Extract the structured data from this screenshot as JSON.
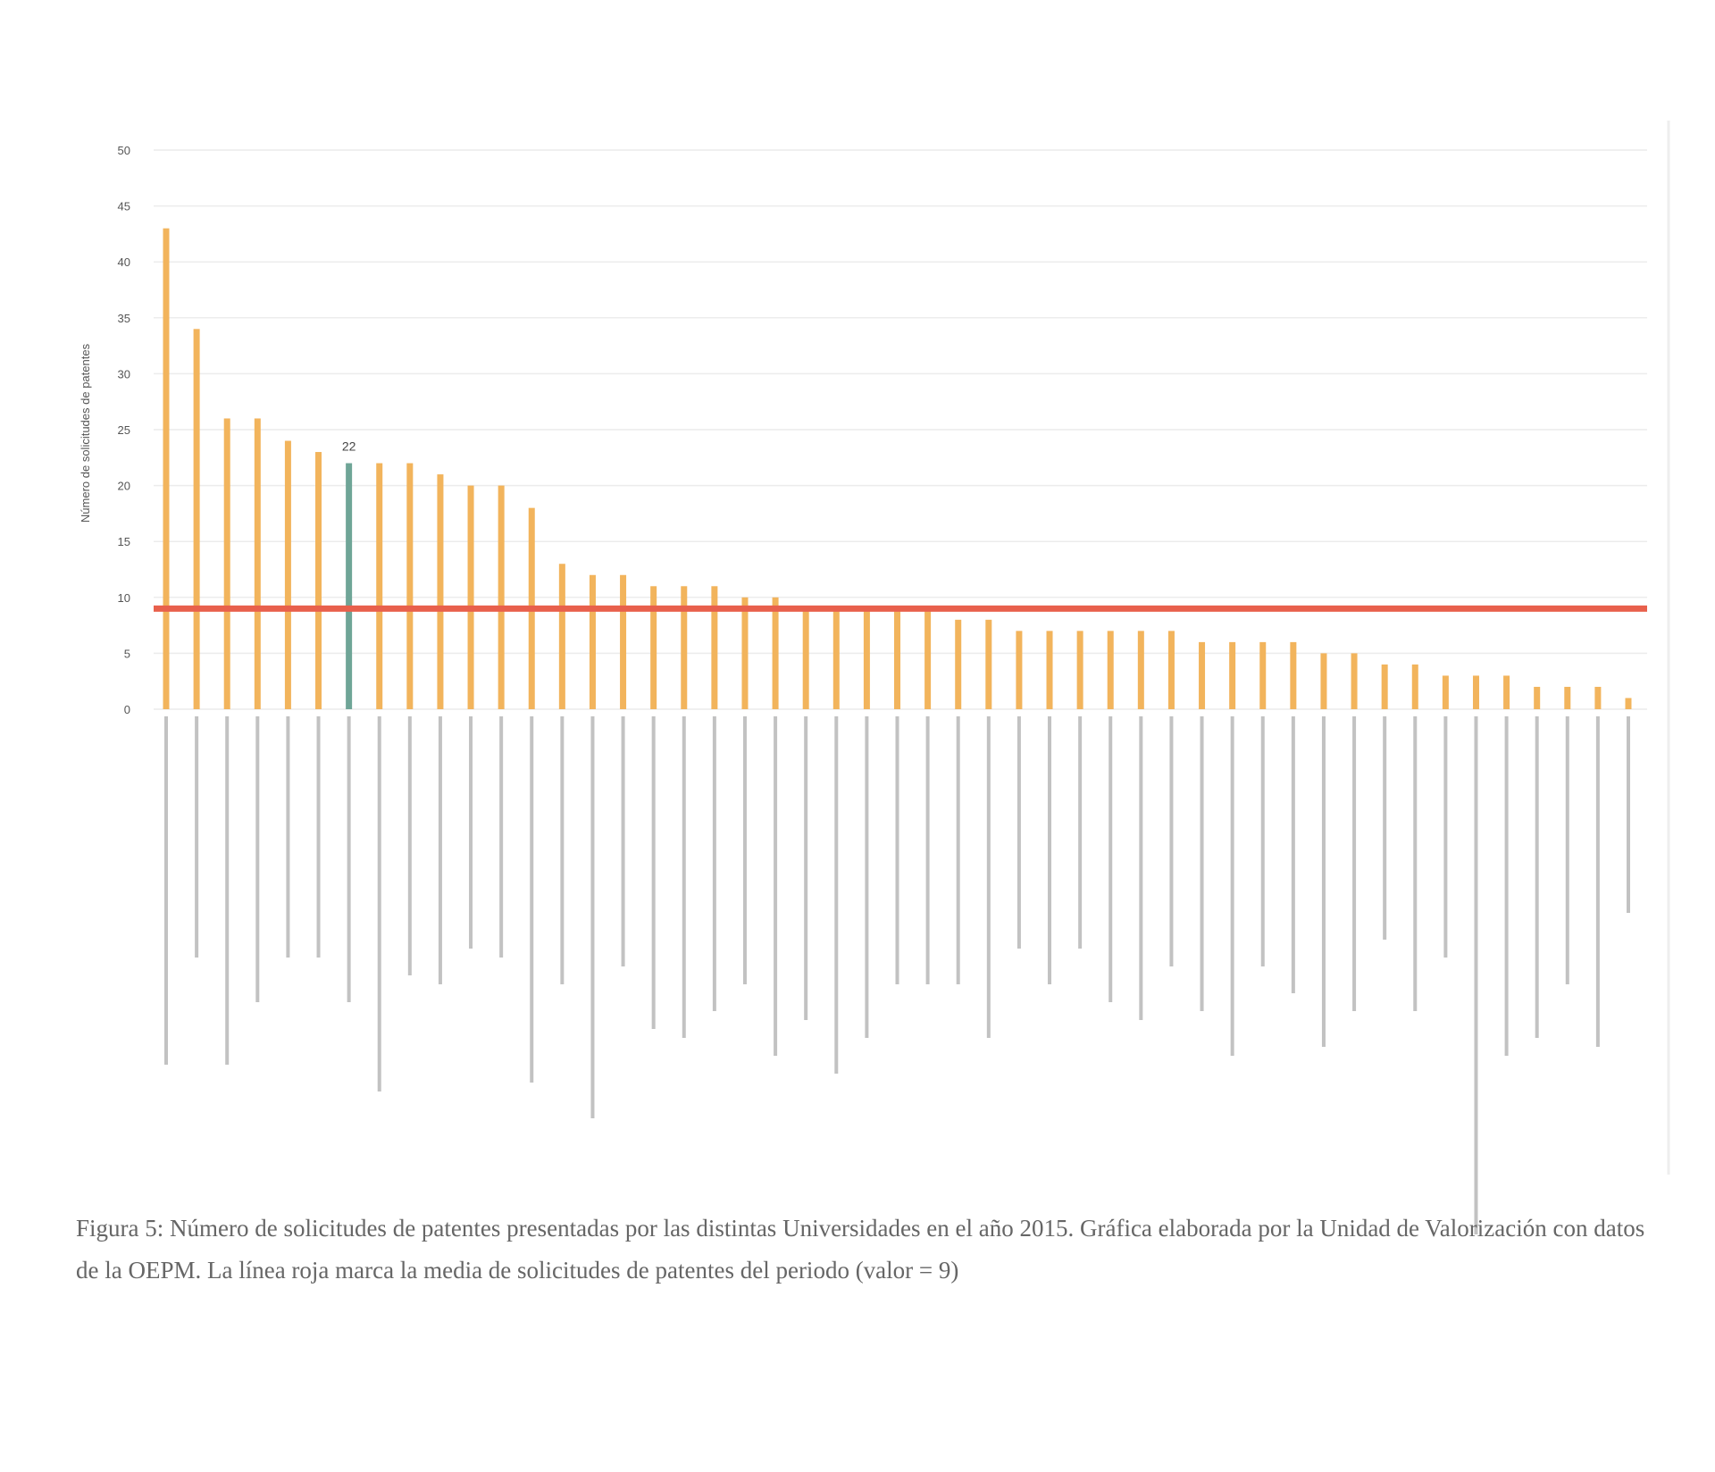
{
  "chart_data": {
    "type": "bar",
    "y_label": "Número de solicitudes de patentes",
    "categories": [
      null,
      null,
      null,
      null,
      null,
      null,
      null,
      null,
      null,
      null,
      null,
      null,
      null,
      null,
      null,
      null,
      null,
      null,
      null,
      null,
      null,
      null,
      null,
      null,
      null,
      null,
      null,
      null,
      null,
      null,
      null,
      null,
      null,
      null,
      null,
      null,
      null,
      null,
      null,
      null,
      null,
      null,
      null,
      null,
      null,
      null,
      null,
      null,
      null
    ],
    "values": [
      43,
      34,
      26,
      26,
      24,
      23,
      22,
      22,
      22,
      21,
      20,
      20,
      18,
      13,
      12,
      12,
      11,
      11,
      11,
      10,
      10,
      9,
      9,
      9,
      9,
      9,
      8,
      8,
      7,
      7,
      7,
      7,
      7,
      7,
      6,
      6,
      6,
      6,
      5,
      5,
      4,
      4,
      3,
      3,
      3,
      2,
      2,
      2,
      1
    ],
    "value_labels": [
      null,
      null,
      null,
      null,
      null,
      null,
      "22",
      null,
      null,
      null,
      null,
      null,
      null,
      null,
      null,
      null,
      null,
      null,
      null,
      null,
      null,
      null,
      null,
      null,
      null,
      null,
      null,
      null,
      null,
      null,
      null,
      null,
      null,
      null,
      null,
      null,
      null,
      null,
      null,
      null,
      null,
      null,
      null,
      null,
      null,
      null,
      null,
      null,
      null
    ],
    "colors": [
      "#f2b45c",
      "#f2b45c",
      "#f2b45c",
      "#f2b45c",
      "#f2b45c",
      "#f2b45c",
      "#6fa597",
      "#f2b45c",
      "#f2b45c",
      "#f2b45c",
      "#f2b45c",
      "#f2b45c",
      "#f2b45c",
      "#f2b45c",
      "#f2b45c",
      "#f2b45c",
      "#f2b45c",
      "#f2b45c",
      "#f2b45c",
      "#f2b45c",
      "#f2b45c",
      "#f2b45c",
      "#f2b45c",
      "#f2b45c",
      "#f2b45c",
      "#f2b45c",
      "#f2b45c",
      "#f2b45c",
      "#f2b45c",
      "#f2b45c",
      "#f2b45c",
      "#f2b45c",
      "#f2b45c",
      "#f2b45c",
      "#f2b45c",
      "#f2b45c",
      "#f2b45c",
      "#f2b45c",
      "#f2b45c",
      "#f2b45c",
      "#f2b45c",
      "#f2b45c",
      "#f2b45c",
      "#f2b45c",
      "#f2b45c",
      "#f2b45c",
      "#f2b45c",
      "#f2b45c",
      "#f2b45c"
    ],
    "mean_line": {
      "value": 9,
      "color": "#e8604c"
    },
    "ylim": [
      0,
      50
    ],
    "yticks": [
      0,
      5,
      10,
      15,
      20,
      25,
      30,
      35,
      40,
      45,
      50
    ],
    "grid": true,
    "caption": "Figura 5: Número de solicitudes de patentes presentadas por las distintas Universidades en el año 2015. Gráfica elaborada por la Unidad de Valorización con datos de la OEPM. La línea roja marca la media de solicitudes de patentes del periodo (valor = 9)"
  }
}
